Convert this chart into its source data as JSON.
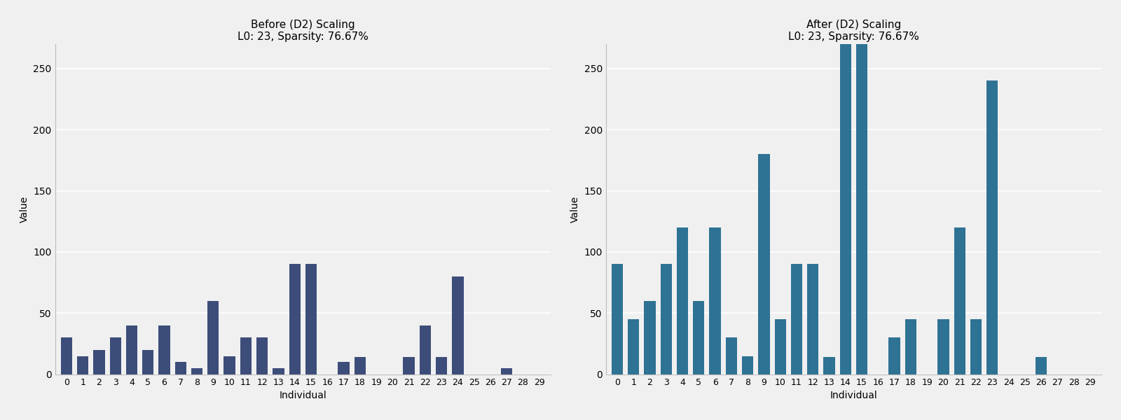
{
  "before_title": "Before (D2) Scaling\nL0: 23, Sparsity: 76.67%",
  "after_title": "After (D2) Scaling\nL0: 23, Sparsity: 76.67%",
  "xlabel": "Individual",
  "ylabel": "Value",
  "n_individuals": 30,
  "before_values": [
    30,
    15,
    20,
    30,
    40,
    20,
    40,
    10,
    5,
    60,
    15,
    30,
    30,
    5,
    90,
    90,
    0,
    10,
    14,
    0,
    0,
    14,
    40,
    14,
    80,
    0,
    0,
    5,
    0,
    0
  ],
  "after_values": [
    90,
    45,
    60,
    90,
    120,
    60,
    120,
    30,
    15,
    180,
    45,
    90,
    90,
    14,
    270,
    270,
    0,
    30,
    45,
    0,
    45,
    120,
    45,
    240,
    0,
    0,
    14,
    0,
    0,
    0
  ],
  "before_color": "#3d4d7a",
  "after_color": "#2e7294",
  "background_color": "#f0f0f0",
  "ylim_before": [
    0,
    270
  ],
  "ylim_after": [
    0,
    270
  ],
  "title_fontsize": 11,
  "axis_label_fontsize": 10,
  "tick_fontsize": 9
}
